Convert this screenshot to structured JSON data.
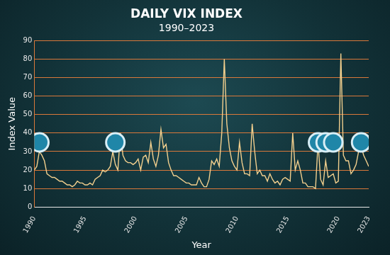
{
  "chart_data": {
    "type": "line",
    "title": "DAILY VIX INDEX",
    "subtitle": "1990–2023",
    "x_label": "Year",
    "y_label": "Index Value",
    "x": [
      1990,
      1990.25,
      1990.5,
      1990.75,
      1991,
      1991.25,
      1991.5,
      1991.75,
      1992,
      1992.25,
      1992.5,
      1992.75,
      1993,
      1993.25,
      1993.5,
      1993.75,
      1994,
      1994.25,
      1994.5,
      1994.75,
      1995,
      1995.25,
      1995.5,
      1995.75,
      1996,
      1996.25,
      1996.5,
      1996.75,
      1997,
      1997.25,
      1997.5,
      1997.75,
      1998,
      1998.25,
      1998.5,
      1998.75,
      1999,
      1999.25,
      1999.5,
      1999.75,
      2000,
      2000.25,
      2000.5,
      2000.75,
      2001,
      2001.25,
      2001.5,
      2001.75,
      2002,
      2002.25,
      2002.5,
      2002.75,
      2003,
      2003.25,
      2003.5,
      2003.75,
      2004,
      2004.25,
      2004.5,
      2004.75,
      2005,
      2005.25,
      2005.5,
      2005.75,
      2006,
      2006.25,
      2006.5,
      2006.75,
      2007,
      2007.25,
      2007.5,
      2007.75,
      2008,
      2008.25,
      2008.5,
      2008.75,
      2009,
      2009.25,
      2009.5,
      2009.75,
      2010,
      2010.25,
      2010.5,
      2010.75,
      2011,
      2011.25,
      2011.5,
      2011.75,
      2012,
      2012.25,
      2012.5,
      2012.75,
      2013,
      2013.25,
      2013.5,
      2013.75,
      2014,
      2014.25,
      2014.5,
      2014.75,
      2015,
      2015.25,
      2015.5,
      2015.75,
      2016,
      2016.25,
      2016.5,
      2016.75,
      2017,
      2017.25,
      2017.5,
      2017.75,
      2018,
      2018.25,
      2018.5,
      2018.75,
      2019,
      2019.25,
      2019.5,
      2019.75,
      2020,
      2020.25,
      2020.5,
      2020.75,
      2021,
      2021.25,
      2021.5,
      2021.75,
      2022,
      2022.25,
      2022.5,
      2022.75,
      2023
    ],
    "series": [
      {
        "color": "#f3d08e",
        "values": [
          20,
          22,
          30,
          28,
          25,
          18,
          17,
          16,
          16,
          15,
          14,
          14,
          13,
          12,
          12,
          11,
          12,
          14,
          13,
          13,
          12,
          12,
          13,
          12,
          15,
          16,
          17,
          20,
          19,
          20,
          22,
          30,
          23,
          20,
          40,
          28,
          25,
          24,
          24,
          23,
          24,
          26,
          20,
          27,
          28,
          24,
          35,
          26,
          22,
          28,
          42,
          32,
          34,
          24,
          20,
          17,
          17,
          16,
          15,
          14,
          13,
          13,
          12,
          12,
          12,
          16,
          13,
          11,
          11,
          15,
          25,
          23,
          26,
          22,
          40,
          80,
          45,
          32,
          25,
          22,
          20,
          35,
          24,
          18,
          18,
          17,
          45,
          30,
          18,
          20,
          17,
          17,
          14,
          18,
          15,
          13,
          14,
          12,
          15,
          16,
          15,
          14,
          40,
          20,
          25,
          20,
          13,
          13,
          11,
          11,
          11,
          10,
          35,
          15,
          12,
          25,
          16,
          17,
          18,
          13,
          14,
          83,
          28,
          25,
          25,
          18,
          20,
          23,
          30,
          33,
          28,
          25,
          22
        ]
      },
      {
        "color": "#1f86a8",
        "marker": "circle",
        "line_style": "none",
        "values": [
          null,
          null,
          35,
          null,
          null,
          null,
          null,
          null,
          null,
          null,
          null,
          null,
          null,
          null,
          null,
          null,
          null,
          null,
          null,
          null,
          null,
          null,
          null,
          null,
          null,
          null,
          null,
          null,
          null,
          null,
          null,
          null,
          35,
          null,
          null,
          null,
          null,
          null,
          null,
          null,
          null,
          null,
          null,
          null,
          null,
          null,
          null,
          null,
          null,
          null,
          null,
          null,
          null,
          null,
          null,
          null,
          null,
          null,
          null,
          null,
          null,
          null,
          null,
          null,
          null,
          null,
          null,
          null,
          null,
          null,
          null,
          null,
          null,
          null,
          null,
          null,
          null,
          null,
          null,
          null,
          null,
          null,
          null,
          null,
          null,
          null,
          null,
          null,
          null,
          null,
          null,
          null,
          null,
          null,
          null,
          null,
          null,
          null,
          null,
          null,
          null,
          null,
          null,
          null,
          null,
          null,
          null,
          null,
          null,
          null,
          null,
          null,
          35,
          null,
          null,
          35,
          null,
          null,
          35,
          null,
          null,
          null,
          null,
          null,
          null,
          null,
          null,
          null,
          null,
          35,
          null,
          null,
          null
        ]
      }
    ],
    "xlim": [
      1990,
      2023
    ],
    "xticks": [
      1990,
      1995,
      2000,
      2005,
      2010,
      2015,
      2020,
      2023
    ],
    "ylim": [
      0,
      90
    ],
    "yticks": [
      0,
      10,
      20,
      30,
      40,
      50,
      60,
      70,
      80,
      90
    ],
    "grid": true
  }
}
